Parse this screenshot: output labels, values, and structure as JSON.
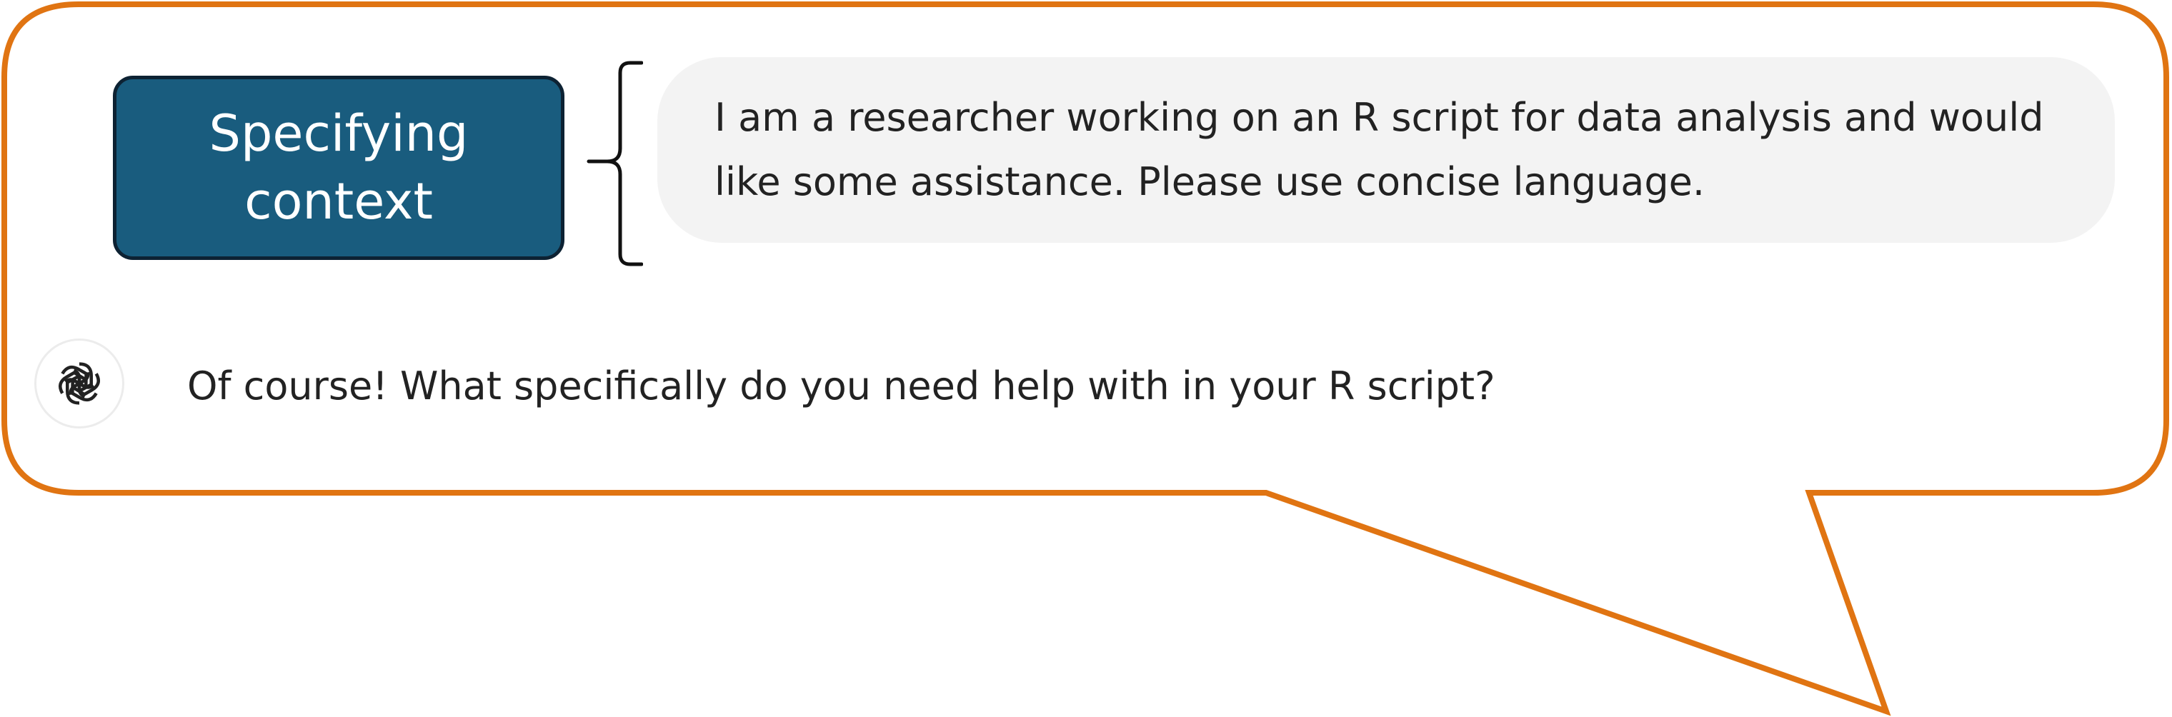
{
  "callout": {
    "border_color": "#e07412"
  },
  "label": {
    "text": "Specifying context",
    "background_color": "#195c7e",
    "text_color": "#ffffff"
  },
  "bracket": {
    "icon": "curly-brace-icon"
  },
  "user_message": {
    "text": "I am a researcher working on an R script for data analysis and would like some assistance. Please use concise language.",
    "bubble_color": "#f3f3f3"
  },
  "assistant_message": {
    "avatar_icon": "openai-logo-icon",
    "text": "Of course! What specifically do you need help with in your R script?"
  }
}
